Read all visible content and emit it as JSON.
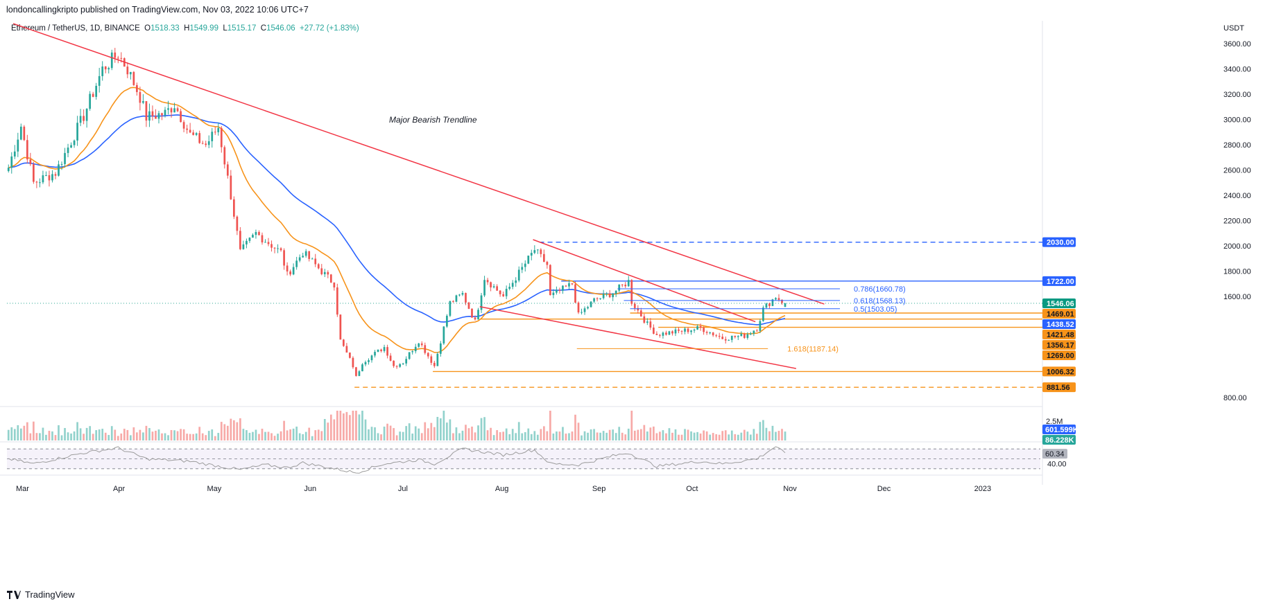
{
  "header": {
    "publisher": "londoncallingkripto published on TradingView.com, Nov 03, 2022 10:06 UTC+7",
    "symbol": "Ethereum / TetherUS, 1D, BINANCE",
    "o_label": "O",
    "o": "1518.33",
    "h_label": "H",
    "h": "1549.99",
    "l_label": "L",
    "l": "1515.17",
    "c_label": "C",
    "c": "1546.06",
    "change": "+27.72 (+1.83%)"
  },
  "footer": {
    "brand": "TradingView"
  },
  "colors": {
    "up": "#26a69a",
    "down": "#ef5350",
    "ema_fast": "#f7931a",
    "ema_slow": "#2962ff",
    "trend": "#f23645",
    "level_orange": "#f7931a",
    "level_blue": "#2962ff",
    "rsi": "#9c9c9c"
  },
  "chart_data": {
    "type": "candlestick",
    "annotation": "Major Bearish Trendline",
    "y_axis_unit": "USDT",
    "y_ticks": [
      "3600.00",
      "3400.00",
      "3200.00",
      "3000.00",
      "2800.00",
      "2600.00",
      "2400.00",
      "2200.00",
      "2000.00",
      "1800.00",
      "1600.00",
      "800.00"
    ],
    "y_tick_values": [
      3600,
      3400,
      3200,
      3000,
      2800,
      2600,
      2400,
      2200,
      2000,
      1800,
      1600,
      800
    ],
    "ylim": [
      740,
      3700
    ],
    "x_ticks": [
      "Mar",
      "Apr",
      "May",
      "Jun",
      "Jul",
      "Aug",
      "Sep",
      "Oct",
      "Nov",
      "Dec",
      "2023"
    ],
    "x_tick_dates": [
      "2022-03-01",
      "2022-04-01",
      "2022-05-01",
      "2022-06-01",
      "2022-07-01",
      "2022-08-01",
      "2022-09-01",
      "2022-10-01",
      "2022-11-01",
      "2022-12-01",
      "2023-01-01"
    ],
    "x_range": [
      "2022-02-27",
      "2023-01-23"
    ],
    "price_anchors": [
      [
        "2022-02-27",
        2620
      ],
      [
        "2022-03-03",
        2950
      ],
      [
        "2022-03-07",
        2500
      ],
      [
        "2022-03-14",
        2580
      ],
      [
        "2022-03-23",
        3030
      ],
      [
        "2022-03-29",
        3400
      ],
      [
        "2022-04-03",
        3520
      ],
      [
        "2022-04-06",
        3400
      ],
      [
        "2022-04-10",
        3180
      ],
      [
        "2022-04-12",
        3020
      ],
      [
        "2022-04-18",
        3050
      ],
      [
        "2022-04-21",
        3120
      ],
      [
        "2022-04-26",
        2880
      ],
      [
        "2022-05-01",
        2800
      ],
      [
        "2022-05-05",
        2940
      ],
      [
        "2022-05-09",
        2400
      ],
      [
        "2022-05-12",
        1950
      ],
      [
        "2022-05-17",
        2100
      ],
      [
        "2022-05-25",
        1950
      ],
      [
        "2022-05-27",
        1770
      ],
      [
        "2022-06-01",
        1950
      ],
      [
        "2022-06-07",
        1800
      ],
      [
        "2022-06-11",
        1700
      ],
      [
        "2022-06-13",
        1250
      ],
      [
        "2022-06-17",
        1050
      ],
      [
        "2022-06-18",
        960
      ],
      [
        "2022-06-20",
        1080
      ],
      [
        "2022-06-27",
        1200
      ],
      [
        "2022-06-30",
        1050
      ],
      [
        "2022-07-03",
        1080
      ],
      [
        "2022-07-08",
        1250
      ],
      [
        "2022-07-13",
        1050
      ],
      [
        "2022-07-18",
        1550
      ],
      [
        "2022-07-22",
        1620
      ],
      [
        "2022-07-26",
        1400
      ],
      [
        "2022-07-29",
        1750
      ],
      [
        "2022-08-04",
        1600
      ],
      [
        "2022-08-08",
        1750
      ],
      [
        "2022-08-14",
        1970
      ],
      [
        "2022-08-18",
        1850
      ],
      [
        "2022-08-19",
        1600
      ],
      [
        "2022-08-26",
        1700
      ],
      [
        "2022-08-28",
        1450
      ],
      [
        "2022-09-02",
        1570
      ],
      [
        "2022-09-08",
        1630
      ],
      [
        "2022-09-13",
        1720
      ],
      [
        "2022-09-14",
        1560
      ],
      [
        "2022-09-19",
        1380
      ],
      [
        "2022-09-22",
        1300
      ],
      [
        "2022-10-01",
        1330
      ],
      [
        "2022-10-06",
        1350
      ],
      [
        "2022-10-13",
        1270
      ],
      [
        "2022-10-20",
        1290
      ],
      [
        "2022-10-24",
        1350
      ],
      [
        "2022-10-26",
        1500
      ],
      [
        "2022-10-30",
        1600
      ],
      [
        "2022-11-02",
        1546
      ]
    ],
    "last_candle": {
      "date": "2022-11-02",
      "open": 1518.33,
      "high": 1549.99,
      "low": 1515.17,
      "close": 1546.06
    },
    "price_axis_labels": [
      {
        "value": 2030,
        "text": "2030.00",
        "color": "#2962ff"
      },
      {
        "value": 1722,
        "text": "1722.00",
        "color": "#2962ff"
      },
      {
        "value": 1546.06,
        "text": "1546.06",
        "color": "#089981"
      },
      {
        "value": 1469.01,
        "text": "1469.01",
        "color": "#f7931a"
      },
      {
        "value": 1438.52,
        "text": "1438.52",
        "color": "#2962ff"
      },
      {
        "value": 1421.48,
        "text": "1421.48",
        "color": "#f7931a"
      },
      {
        "value": 1356.17,
        "text": "1356.17",
        "color": "#f7931a"
      },
      {
        "value": 1269.0,
        "text": "1269.00",
        "color": "#f7931a"
      },
      {
        "value": 1006.32,
        "text": "1006.32",
        "color": "#f7931a"
      },
      {
        "value": 881.56,
        "text": "881.56",
        "color": "#f7931a"
      }
    ],
    "trendlines": [
      {
        "name": "major-bearish-trendline",
        "from": [
          "2022-03-01",
          3760
        ],
        "to": [
          "2022-11-15",
          1540
        ],
        "color": "#f23645"
      },
      {
        "name": "channel-upper",
        "from": [
          "2022-08-14",
          2050
        ],
        "to": [
          "2022-10-24",
          1400
        ],
        "color": "#f23645"
      },
      {
        "name": "channel-lower",
        "from": [
          "2022-07-28",
          1520
        ],
        "to": [
          "2022-11-06",
          1030
        ],
        "color": "#f23645"
      }
    ],
    "horizontal_levels": [
      {
        "value": 2030,
        "from": "2022-08-16",
        "to": "2023-01-23",
        "style": "dashed",
        "color": "#2962ff"
      },
      {
        "value": 1722,
        "from": "2022-08-23",
        "to": "2023-01-23",
        "style": "solid",
        "color": "#2962ff"
      },
      {
        "value": 1469.01,
        "from": "2022-09-14",
        "to": "2023-01-23",
        "style": "solid",
        "color": "#f7931a"
      },
      {
        "value": 1421.48,
        "from": "2022-07-28",
        "to": "2023-01-23",
        "style": "solid",
        "color": "#f7931a"
      },
      {
        "value": 1356.17,
        "from": "2022-09-23",
        "to": "2023-01-23",
        "style": "solid",
        "color": "#f7931a"
      },
      {
        "value": 1006.32,
        "from": "2022-07-13",
        "to": "2023-01-23",
        "style": "solid",
        "color": "#f7931a"
      },
      {
        "value": 881.56,
        "from": "2022-06-18",
        "to": "2023-01-23",
        "style": "dashed",
        "color": "#f7931a"
      }
    ],
    "fib_levels": [
      {
        "value": 1660.78,
        "text": "0.786(1660.78)",
        "from": "2022-09-10",
        "to": "2022-11-20",
        "color": "#2962ff"
      },
      {
        "value": 1568.13,
        "text": "0.618(1568.13)",
        "from": "2022-09-12",
        "to": "2022-11-20",
        "color": "#2962ff"
      },
      {
        "value": 1503.05,
        "text": "0.5(1503.05)",
        "from": "2022-09-14",
        "to": "2022-11-20",
        "color": "#2962ff"
      },
      {
        "value": 1187.14,
        "text": "1.618(1187.14)",
        "from": "2022-08-28",
        "to": "2022-10-28",
        "color": "#f7931a"
      }
    ],
    "volume": {
      "tick_label": "2.5M",
      "labels": [
        {
          "text": "601.599K",
          "color": "#2962ff"
        },
        {
          "text": "86.228K",
          "color": "#26a69a"
        }
      ]
    },
    "rsi": {
      "value_label": "60.34",
      "tick_label": "40.00",
      "value": 60.34,
      "band": [
        30,
        70
      ],
      "anchors": [
        [
          "2022-02-27",
          50
        ],
        [
          "2022-03-07",
          40
        ],
        [
          "2022-03-23",
          62
        ],
        [
          "2022-04-03",
          72
        ],
        [
          "2022-04-12",
          50
        ],
        [
          "2022-04-26",
          45
        ],
        [
          "2022-05-12",
          28
        ],
        [
          "2022-05-20",
          38
        ],
        [
          "2022-05-27",
          32
        ],
        [
          "2022-06-01",
          42
        ],
        [
          "2022-06-18",
          22
        ],
        [
          "2022-06-27",
          40
        ],
        [
          "2022-07-08",
          48
        ],
        [
          "2022-07-13",
          40
        ],
        [
          "2022-07-22",
          70
        ],
        [
          "2022-08-04",
          58
        ],
        [
          "2022-08-14",
          68
        ],
        [
          "2022-08-19",
          40
        ],
        [
          "2022-08-28",
          38
        ],
        [
          "2022-09-08",
          56
        ],
        [
          "2022-09-13",
          62
        ],
        [
          "2022-09-22",
          35
        ],
        [
          "2022-10-06",
          45
        ],
        [
          "2022-10-13",
          40
        ],
        [
          "2022-10-24",
          50
        ],
        [
          "2022-10-30",
          75
        ],
        [
          "2022-11-02",
          60.34
        ]
      ]
    }
  }
}
